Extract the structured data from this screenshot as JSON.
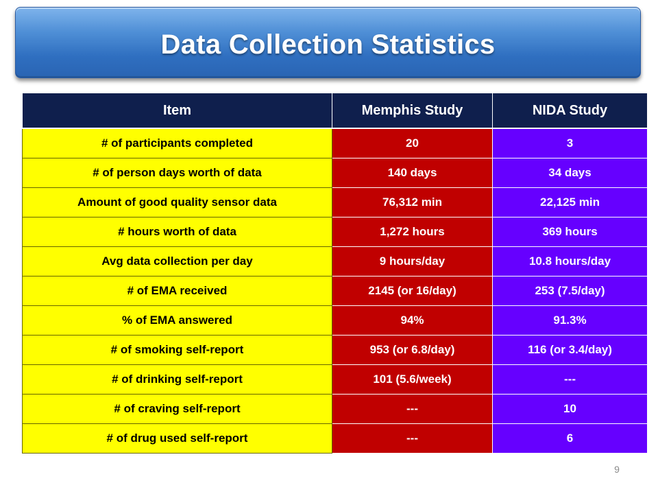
{
  "slide": {
    "title": "Data Collection Statistics",
    "page_number": "9"
  },
  "table": {
    "headers": [
      "Item",
      "Memphis Study",
      "NIDA Study"
    ],
    "rows": [
      {
        "item": "# of participants completed",
        "memphis": "20",
        "nida": "3"
      },
      {
        "item": "# of person days worth of data",
        "memphis": "140 days",
        "nida": "34 days"
      },
      {
        "item": "Amount of good quality sensor data",
        "memphis": "76,312 min",
        "nida": "22,125 min"
      },
      {
        "item": "# hours worth of data",
        "memphis": "1,272 hours",
        "nida": "369 hours"
      },
      {
        "item": "Avg data collection per day",
        "memphis": "9 hours/day",
        "nida": "10.8 hours/day"
      },
      {
        "item": "# of EMA received",
        "memphis": "2145 (or 16/day)",
        "nida": "253 (7.5/day)"
      },
      {
        "item": "% of EMA answered",
        "memphis": "94%",
        "nida": "91.3%"
      },
      {
        "item": "# of smoking self-report",
        "memphis": "953 (or 6.8/day)",
        "nida": "116 (or 3.4/day)"
      },
      {
        "item": "# of drinking self-report",
        "memphis": "101 (5.6/week)",
        "nida": "---"
      },
      {
        "item": "# of craving self-report",
        "memphis": "---",
        "nida": "10"
      },
      {
        "item": "# of drug used self-report",
        "memphis": "---",
        "nida": "6"
      }
    ]
  },
  "colors": {
    "header_bg": "#0f1f4d",
    "item_bg": "#ffff00",
    "memphis_bg": "#c00000",
    "nida_bg": "#6600ff",
    "title_banner": "#3a7bd5"
  }
}
